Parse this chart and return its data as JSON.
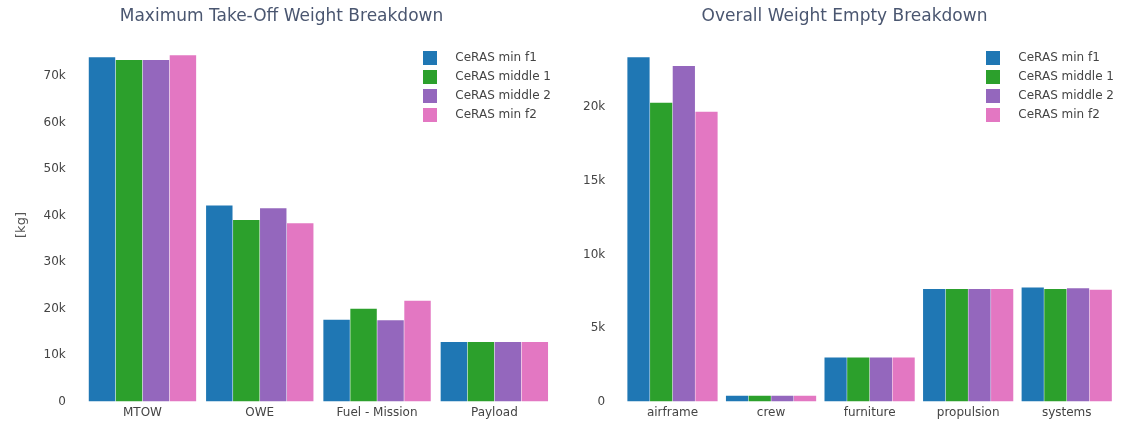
{
  "chart_data": [
    {
      "type": "bar",
      "title": "Maximum Take-Off Weight Breakdown",
      "ylabel": "[kg]",
      "categories": [
        "MTOW",
        "OWE",
        "Fuel - Mission",
        "Payload"
      ],
      "series": [
        {
          "name": "CeRAS min f1",
          "color": "#1f77b4",
          "values": [
            74100,
            42200,
            17600,
            12800
          ]
        },
        {
          "name": "CeRAS middle 1",
          "color": "#2ca02c",
          "values": [
            73500,
            39100,
            20000,
            12800
          ]
        },
        {
          "name": "CeRAS middle 2",
          "color": "#9467bd",
          "values": [
            73500,
            41600,
            17500,
            12800
          ]
        },
        {
          "name": "CeRAS min f2",
          "color": "#e377c2",
          "values": [
            74500,
            38400,
            21700,
            12800
          ]
        }
      ],
      "ylim": [
        0,
        76000
      ],
      "yticks": [
        0,
        {
          "value": 10000,
          "label": "10k"
        },
        {
          "value": 20000,
          "label": "20k"
        },
        {
          "value": 30000,
          "label": "30k"
        },
        {
          "value": 40000,
          "label": "40k"
        },
        {
          "value": 50000,
          "label": "50k"
        },
        {
          "value": 60000,
          "label": "60k"
        },
        {
          "value": 70000,
          "label": "70k"
        }
      ],
      "legend": "top right",
      "grid": false
    },
    {
      "type": "bar",
      "title": "Overall Weight Empty Breakdown",
      "categories": [
        "airframe",
        "crew",
        "furniture",
        "propulsion",
        "systems"
      ],
      "series": [
        {
          "name": "CeRAS min f1",
          "color": "#1f77b4",
          "values": [
            23400,
            400,
            3000,
            7650,
            7750
          ]
        },
        {
          "name": "CeRAS middle 1",
          "color": "#2ca02c",
          "values": [
            20300,
            400,
            3000,
            7650,
            7650
          ]
        },
        {
          "name": "CeRAS middle 2",
          "color": "#9467bd",
          "values": [
            22800,
            400,
            3000,
            7650,
            7700
          ]
        },
        {
          "name": "CeRAS min f2",
          "color": "#e377c2",
          "values": [
            19700,
            400,
            3000,
            7650,
            7600
          ]
        }
      ],
      "ylim": [
        0,
        24000
      ],
      "yticks": [
        0,
        {
          "value": 5000,
          "label": "5k"
        },
        {
          "value": 10000,
          "label": "10k"
        },
        {
          "value": 15000,
          "label": "15k"
        },
        {
          "value": 20000,
          "label": "20k"
        }
      ],
      "legend": "top right",
      "grid": false
    }
  ]
}
